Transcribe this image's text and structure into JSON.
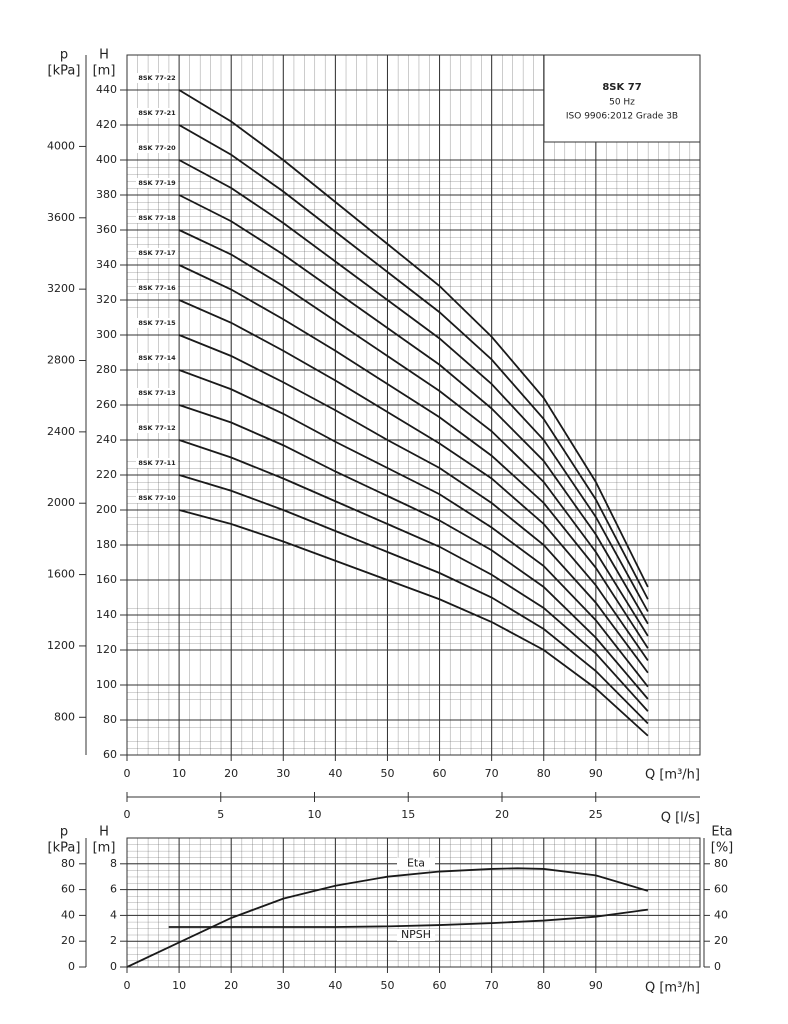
{
  "chart_data": [
    {
      "type": "line",
      "title": "8SK 77",
      "subtitle": [
        "50 Hz",
        "ISO 9906:2012 Grade 3B"
      ],
      "x_label": "Q [m³/h]",
      "x2_label": "Q [l/s]",
      "y_label": "H",
      "y_unit": "[m]",
      "p_label": "p",
      "p_unit": "[kPa]",
      "xlim": [
        0,
        110
      ],
      "xticks": [
        0,
        10,
        20,
        30,
        40,
        50,
        60,
        70,
        80,
        90
      ],
      "x2lim": [
        0,
        30.56
      ],
      "x2ticks": [
        0,
        5,
        10,
        15,
        20,
        25
      ],
      "ylim": [
        60,
        460
      ],
      "yticks": [
        60,
        80,
        100,
        120,
        140,
        160,
        180,
        200,
        220,
        240,
        260,
        280,
        300,
        320,
        340,
        360,
        380,
        400,
        420,
        440
      ],
      "plim": [
        588.6,
        4512.6
      ],
      "pticks": [
        800,
        1200,
        1600,
        2000,
        2400,
        2800,
        3200,
        3600,
        4000
      ],
      "grid": true,
      "series_label": "start",
      "x": [
        10,
        20,
        30,
        40,
        50,
        60,
        70,
        80,
        90,
        100
      ],
      "series": [
        {
          "name": "8SK 77-10",
          "color": "#1a1a1a",
          "values": [
            200,
            192,
            182,
            171,
            160,
            149,
            136,
            120,
            98,
            71
          ]
        },
        {
          "name": "8SK 77-11",
          "color": "#1a1a1a",
          "values": [
            220,
            211,
            200,
            188,
            176,
            164,
            150,
            132,
            108,
            78
          ]
        },
        {
          "name": "8SK 77-12",
          "color": "#1a1a1a",
          "values": [
            240,
            230,
            218,
            205,
            192,
            179,
            163,
            144,
            118,
            85
          ]
        },
        {
          "name": "8SK 77-13",
          "color": "#1a1a1a",
          "values": [
            260,
            250,
            237,
            222,
            208,
            194,
            177,
            156,
            127,
            92
          ]
        },
        {
          "name": "8SK 77-14",
          "color": "#1a1a1a",
          "values": [
            280,
            269,
            255,
            239,
            224,
            209,
            190,
            168,
            137,
            99
          ]
        },
        {
          "name": "8SK 77-15",
          "color": "#1a1a1a",
          "values": [
            300,
            288,
            273,
            257,
            240,
            224,
            204,
            180,
            147,
            107
          ]
        },
        {
          "name": "8SK 77-16",
          "color": "#1a1a1a",
          "values": [
            320,
            307,
            291,
            274,
            256,
            238,
            218,
            192,
            157,
            114
          ]
        },
        {
          "name": "8SK 77-17",
          "color": "#1a1a1a",
          "values": [
            340,
            326,
            309,
            291,
            272,
            253,
            231,
            204,
            167,
            121
          ]
        },
        {
          "name": "8SK 77-18",
          "color": "#1a1a1a",
          "values": [
            360,
            346,
            328,
            308,
            288,
            268,
            245,
            216,
            176,
            128
          ]
        },
        {
          "name": "8SK 77-19",
          "color": "#1a1a1a",
          "values": [
            380,
            365,
            346,
            325,
            304,
            283,
            258,
            228,
            186,
            135
          ]
        },
        {
          "name": "8SK 77-20",
          "color": "#1a1a1a",
          "values": [
            400,
            384,
            364,
            342,
            320,
            298,
            272,
            240,
            196,
            142
          ]
        },
        {
          "name": "8SK 77-21",
          "color": "#1a1a1a",
          "values": [
            420,
            403,
            382,
            359,
            336,
            313,
            286,
            252,
            206,
            149
          ]
        },
        {
          "name": "8SK 77-22",
          "color": "#1a1a1a",
          "values": [
            440,
            422,
            400,
            376,
            352,
            328,
            299,
            264,
            216,
            156
          ]
        }
      ]
    },
    {
      "type": "line",
      "x_label": "Q [m³/h]",
      "y_label": "H",
      "y_unit": "[m]",
      "p_label": "p",
      "p_unit": "[kPa]",
      "y2_label": "Eta",
      "y2_unit": "[%]",
      "xlim": [
        0,
        110
      ],
      "xticks": [
        0,
        10,
        20,
        30,
        40,
        50,
        60,
        70,
        80,
        90
      ],
      "ylim": [
        0,
        10
      ],
      "yticks": [
        0,
        2,
        4,
        6,
        8
      ],
      "plim": [
        0,
        100
      ],
      "pticks": [
        0,
        20,
        40,
        60,
        80
      ],
      "y2lim": [
        0,
        100
      ],
      "y2ticks": [
        0,
        20,
        40,
        60,
        80
      ],
      "grid": true,
      "series_label": "middle",
      "series": [
        {
          "name": "Eta",
          "color": "#1a1a1a",
          "axis": "y2",
          "x": [
            0,
            10,
            20,
            30,
            40,
            50,
            60,
            70,
            75,
            80,
            90,
            100
          ],
          "values": [
            0,
            19,
            38,
            53,
            63,
            70,
            74,
            76,
            76.5,
            76,
            71,
            59
          ]
        },
        {
          "name": "NPSH",
          "color": "#1a1a1a",
          "x": [
            8,
            20,
            40,
            50,
            60,
            70,
            80,
            90,
            100
          ],
          "values": [
            3.1,
            3.1,
            3.1,
            3.15,
            3.25,
            3.4,
            3.6,
            3.9,
            4.45
          ]
        }
      ]
    }
  ]
}
